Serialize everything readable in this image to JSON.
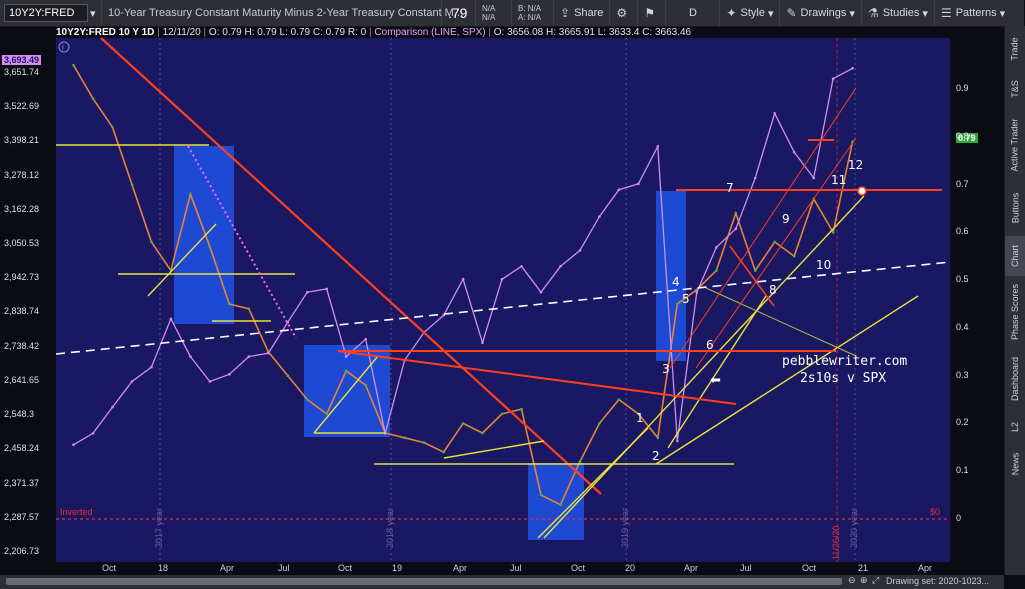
{
  "toolbar": {
    "symbol": "10Y2Y:FRED",
    "description": "10-Year Treasury Constant Maturity Minus 2-Year Treasury Constant M...",
    "last_price": ".79",
    "nana_top": "N/A",
    "nana_bottom": "N/A",
    "bid_ask_top": "B: N/A",
    "bid_ask_bottom": "A: N/A",
    "share_label": "Share",
    "period": "D",
    "style_label": "Style",
    "drawings_label": "Drawings",
    "studies_label": "Studies",
    "patterns_label": "Patterns"
  },
  "infobar": {
    "symbol": "10Y2Y:FRED 10 Y 1D",
    "date": "12/11/20",
    "ohlc": "O: 0.79  H: 0.79  L: 0.79  C: 0.79  R: 0",
    "comparison": "Comparison (LINE, SPX)",
    "comp_ohlc": "O: 3656.08  H: 3665.91  L: 3633.4  C: 3663.46"
  },
  "sidebar": {
    "tabs": [
      "Trade",
      "T&S",
      "Active Trader",
      "Buttons",
      "Chart",
      "Phase Scores",
      "Dashboard",
      "L2",
      "News"
    ],
    "active": "Chart"
  },
  "bottombar": {
    "drawing_set": "Drawing set: 2020-1023..."
  },
  "annotations": {
    "watermark_line1": "pebblewriter.com",
    "watermark_line2": "2s10s v SPX",
    "inverted_label": "Inverted",
    "zero_label": "$0",
    "date_marker": "11/26/20",
    "wave_labels": [
      "1",
      "2",
      "3",
      "4",
      "5",
      "6",
      "7",
      "8",
      "9",
      "10",
      "11",
      "12"
    ],
    "year_markers": [
      "2017 year",
      "2018 year",
      "2019 year",
      "2020 year"
    ]
  },
  "chart_data": {
    "type": "line",
    "title": "",
    "left_axis_ticks": [
      "3,651.74",
      "3,522.69",
      "3,398.21",
      "3,278.12",
      "3,162.28",
      "3,050.53",
      "2,942.73",
      "2,838.74",
      "2,738.42",
      "2,641.65",
      "2,548.3",
      "2,458.24",
      "2,371.37",
      "2,287.57",
      "2,206.73"
    ],
    "left_axis_current": "3,693.49",
    "right_axis_ticks": [
      "0.9",
      "0.8",
      "0.7",
      "0.6",
      "0.5",
      "0.4",
      "0.3",
      "0.2",
      "0.1",
      "0"
    ],
    "right_axis_current": "0.79",
    "x_ticks": [
      "Oct",
      "18",
      "Apr",
      "Jul",
      "Oct",
      "19",
      "Apr",
      "Jul",
      "Oct",
      "20",
      "Apr",
      "Jul",
      "Oct",
      "21",
      "Apr"
    ],
    "ylim_right": [
      -0.1,
      1.0
    ],
    "log_scale_left": true,
    "series": [
      {
        "name": "10Y2Y:FRED",
        "color": "#e8823a",
        "dates": [
          "2017-08",
          "2017-09",
          "2017-10",
          "2017-11",
          "2017-12",
          "2018-01",
          "2018-02",
          "2018-03",
          "2018-04",
          "2018-05",
          "2018-06",
          "2018-07",
          "2018-08",
          "2018-09",
          "2018-10",
          "2018-11",
          "2018-12",
          "2019-01",
          "2019-02",
          "2019-03",
          "2019-04",
          "2019-05",
          "2019-06",
          "2019-07",
          "2019-08",
          "2019-09",
          "2019-10",
          "2019-11",
          "2019-12",
          "2020-01",
          "2020-02",
          "2020-03",
          "2020-04",
          "2020-05",
          "2020-06",
          "2020-07",
          "2020-08",
          "2020-09",
          "2020-10",
          "2020-11",
          "2020-12"
        ],
        "values": [
          0.95,
          0.88,
          0.82,
          0.7,
          0.58,
          0.52,
          0.68,
          0.57,
          0.45,
          0.44,
          0.35,
          0.3,
          0.25,
          0.22,
          0.31,
          0.28,
          0.18,
          0.17,
          0.16,
          0.14,
          0.2,
          0.18,
          0.22,
          0.23,
          0.05,
          0.03,
          0.12,
          0.2,
          0.25,
          0.22,
          0.17,
          0.45,
          0.48,
          0.52,
          0.64,
          0.52,
          0.58,
          0.55,
          0.67,
          0.6,
          0.79
        ]
      },
      {
        "name": "SPX",
        "color": "#d38cf0",
        "dates": [
          "2017-08",
          "2017-09",
          "2017-10",
          "2017-11",
          "2017-12",
          "2018-01",
          "2018-02",
          "2018-03",
          "2018-04",
          "2018-05",
          "2018-06",
          "2018-07",
          "2018-08",
          "2018-09",
          "2018-10",
          "2018-11",
          "2018-12",
          "2019-01",
          "2019-02",
          "2019-03",
          "2019-04",
          "2019-05",
          "2019-06",
          "2019-07",
          "2019-08",
          "2019-09",
          "2019-10",
          "2019-11",
          "2019-12",
          "2020-01",
          "2020-02",
          "2020-03",
          "2020-04",
          "2020-05",
          "2020-06",
          "2020-07",
          "2020-08",
          "2020-09",
          "2020-10",
          "2020-11",
          "2020-12"
        ],
        "values": [
          2470,
          2500,
          2570,
          2640,
          2680,
          2820,
          2710,
          2640,
          2660,
          2710,
          2720,
          2810,
          2900,
          2910,
          2710,
          2760,
          2500,
          2700,
          2780,
          2830,
          2940,
          2750,
          2940,
          2980,
          2900,
          2980,
          3030,
          3140,
          3230,
          3250,
          3380,
          2480,
          2900,
          3040,
          3100,
          3270,
          3500,
          3360,
          3270,
          3630,
          3670
        ]
      }
    ]
  }
}
